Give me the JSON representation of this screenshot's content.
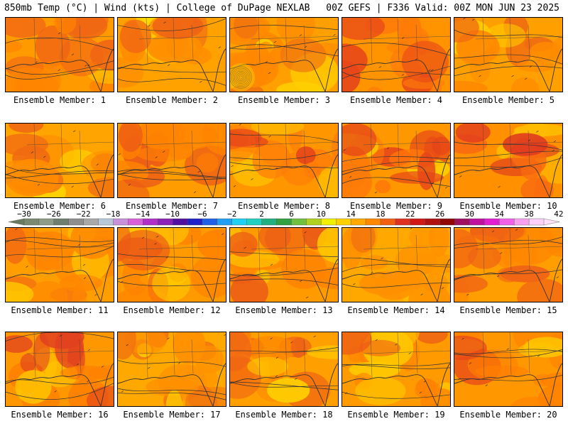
{
  "header": {
    "left": "850mb Temp (°C) | Wind (kts) | College of DuPage NEXLAB",
    "right": "00Z GEFS | F336 Valid: 00Z MON JUN 23 2025"
  },
  "colorbar": {
    "tick_labels": [
      "−30",
      "−26",
      "−22",
      "−18",
      "−14",
      "−10",
      "−6",
      "−2",
      "2",
      "6",
      "10",
      "14",
      "18",
      "22",
      "26",
      "30",
      "34",
      "38",
      "42"
    ],
    "colors": [
      "#7a8a70",
      "#8c9c86",
      "#6e7e6e",
      "#8e8e8e",
      "#a8a8a8",
      "#b8c8d8",
      "#c890d8",
      "#d860d8",
      "#b030c8",
      "#8a20b8",
      "#5010a0",
      "#2020c8",
      "#2060e8",
      "#20a0f0",
      "#20d0f0",
      "#20d0c0",
      "#20b080",
      "#30a040",
      "#70c040",
      "#b0d020",
      "#f0f000",
      "#ffd000",
      "#ffa800",
      "#ff8800",
      "#f06010",
      "#e03020",
      "#d01818",
      "#b01010",
      "#900808",
      "#a01060",
      "#c010a0",
      "#e020d0",
      "#f060e8",
      "#f8a0f0",
      "#fcd0f8"
    ]
  },
  "members": [
    {
      "label": "Ensemble Member: 1",
      "base": "#ff9a00",
      "hot": "#f06414",
      "warm": "#ff8400",
      "yellow": "#ffc800"
    },
    {
      "label": "Ensemble Member: 2",
      "base": "#ffa200",
      "hot": "#f06414",
      "warm": "#ff8c00",
      "yellow": "#ffd800"
    },
    {
      "label": "Ensemble Member: 3",
      "base": "#ffa000",
      "hot": "#f07010",
      "warm": "#ff8800",
      "yellow": "#ffd000"
    },
    {
      "label": "Ensemble Member: 4",
      "base": "#ff9400",
      "hot": "#e84818",
      "warm": "#ff7c08",
      "yellow": "#ffc000"
    },
    {
      "label": "Ensemble Member: 5",
      "base": "#ffa000",
      "hot": "#f06a12",
      "warm": "#ff8a00",
      "yellow": "#ffcc00"
    },
    {
      "label": "Ensemble Member: 6",
      "base": "#ffa400",
      "hot": "#f06a12",
      "warm": "#ff8c00",
      "yellow": "#ffd800"
    },
    {
      "label": "Ensemble Member: 7",
      "base": "#ff9c00",
      "hot": "#ec5a16",
      "warm": "#ff8400",
      "yellow": "#ffc800"
    },
    {
      "label": "Ensemble Member: 8",
      "base": "#ff9600",
      "hot": "#e84818",
      "warm": "#ff7c08",
      "yellow": "#ffc000"
    },
    {
      "label": "Ensemble Member: 9",
      "base": "#ff9800",
      "hot": "#e64418",
      "warm": "#ff7a08",
      "yellow": "#ffd000"
    },
    {
      "label": "Ensemble Member: 10",
      "base": "#ff9000",
      "hot": "#e03820",
      "warm": "#f86a10",
      "yellow": "#ffbc00"
    },
    {
      "label": "Ensemble Member: 11",
      "base": "#ff9e00",
      "hot": "#f06414",
      "warm": "#ff8600",
      "yellow": "#ffc800"
    },
    {
      "label": "Ensemble Member: 12",
      "base": "#ff9a00",
      "hot": "#ec5a16",
      "warm": "#ff8200",
      "yellow": "#ffc800"
    },
    {
      "label": "Ensemble Member: 13",
      "base": "#ff9a00",
      "hot": "#ec5c16",
      "warm": "#ff8200",
      "yellow": "#ffc800"
    },
    {
      "label": "Ensemble Member: 14",
      "base": "#ffa800",
      "hot": "#f07010",
      "warm": "#ff9000",
      "yellow": "#ffd000"
    },
    {
      "label": "Ensemble Member: 15",
      "base": "#ff9e00",
      "hot": "#f06414",
      "warm": "#ff8600",
      "yellow": "#ffc800"
    },
    {
      "label": "Ensemble Member: 16",
      "base": "#ff9800",
      "hot": "#e04020",
      "warm": "#ff8000",
      "yellow": "#ffc400"
    },
    {
      "label": "Ensemble Member: 17",
      "base": "#ffa800",
      "hot": "#f07010",
      "warm": "#ff9000",
      "yellow": "#ffd800"
    },
    {
      "label": "Ensemble Member: 18",
      "base": "#ffa000",
      "hot": "#f06414",
      "warm": "#ff8800",
      "yellow": "#ffcc00"
    },
    {
      "label": "Ensemble Member: 19",
      "base": "#ff9a00",
      "hot": "#ec5a16",
      "warm": "#ff8200",
      "yellow": "#ffc800"
    },
    {
      "label": "Ensemble Member: 20",
      "base": "#ff9800",
      "hot": "#e84a18",
      "warm": "#ff8000",
      "yellow": "#ffc400"
    }
  ]
}
